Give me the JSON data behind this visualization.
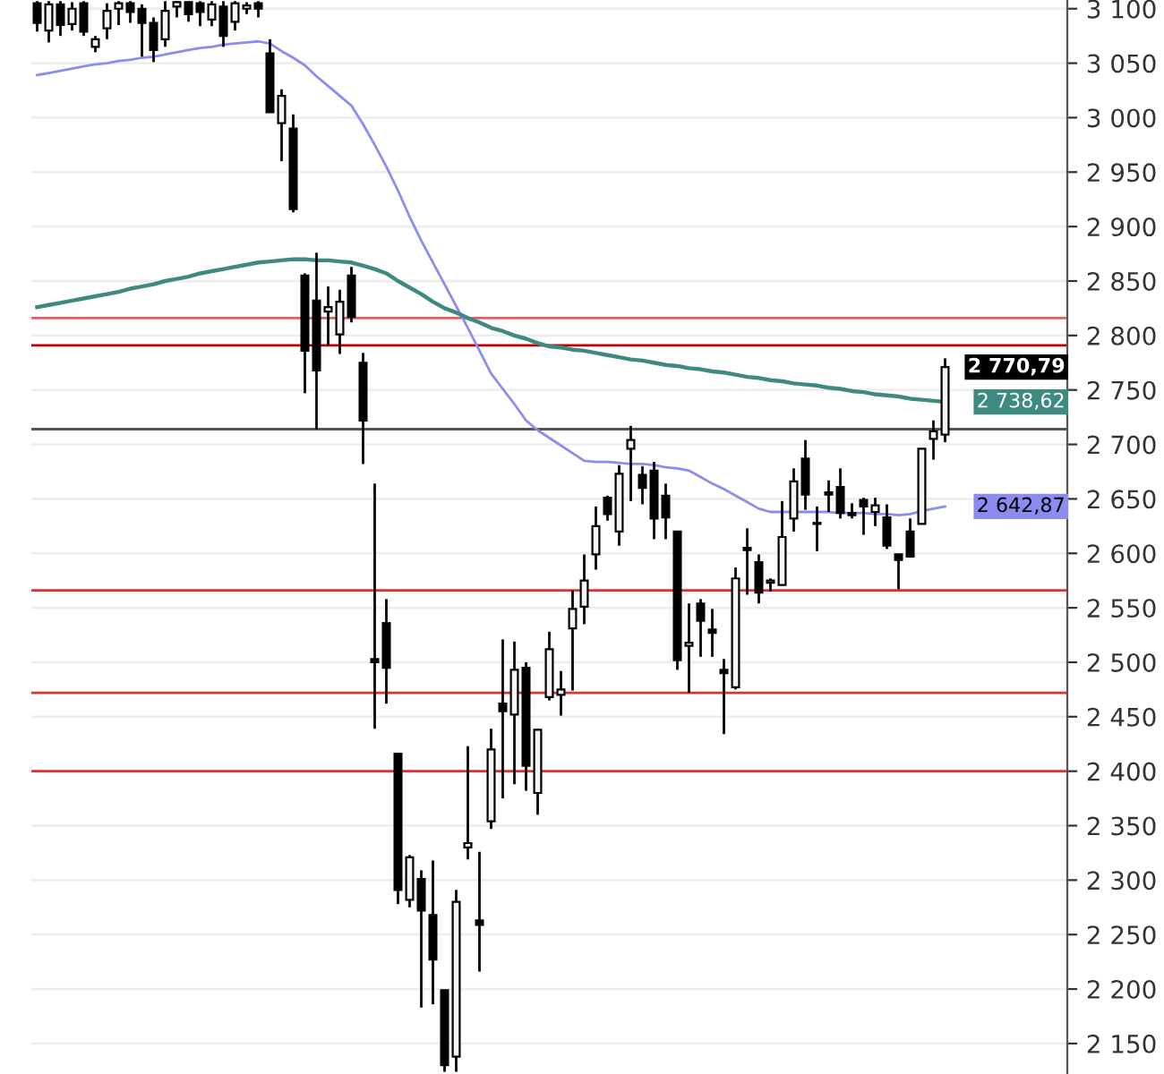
{
  "chart_data": {
    "type": "candlestick",
    "categories": [
      null,
      null,
      null,
      null,
      null,
      null,
      null,
      null,
      null,
      null,
      null,
      null,
      null,
      null,
      null,
      null,
      null,
      null,
      null,
      null,
      null,
      null,
      null,
      null,
      null,
      null,
      null,
      null,
      null,
      null,
      null,
      null,
      null,
      null,
      null,
      null,
      null,
      null,
      null,
      null,
      null,
      null,
      null,
      null,
      null,
      null,
      null,
      null,
      null,
      null,
      null,
      null,
      null,
      null,
      null,
      null,
      null,
      null,
      null,
      null,
      null,
      null,
      null,
      null,
      null,
      null,
      null,
      null,
      null,
      null,
      null,
      null,
      null,
      null,
      null,
      null,
      null,
      null,
      null
    ],
    "ohlc": [
      [
        3105,
        3107,
        3079,
        3087
      ],
      [
        3080,
        3107,
        3069,
        3104
      ],
      [
        3104,
        3107,
        3075,
        3085
      ],
      [
        3086,
        3106,
        3080,
        3100
      ],
      [
        3105,
        3107,
        3075,
        3079
      ],
      [
        3065,
        3075,
        3060,
        3072
      ],
      [
        3082,
        3105,
        3072,
        3098
      ],
      [
        3100,
        3107,
        3085,
        3105
      ],
      [
        3105,
        3107,
        3087,
        3097
      ],
      [
        3100,
        3104,
        3056,
        3087
      ],
      [
        3087,
        3092,
        3051,
        3062
      ],
      [
        3072,
        3107,
        3065,
        3098
      ],
      [
        3102,
        3107,
        3092,
        3106
      ],
      [
        3106,
        3107,
        3088,
        3095
      ],
      [
        3105,
        3107,
        3084,
        3097
      ],
      [
        3090,
        3107,
        3084,
        3104
      ],
      [
        3102,
        3107,
        3065,
        3075
      ],
      [
        3088,
        3107,
        3080,
        3105
      ],
      [
        3100,
        3106,
        3095,
        3103
      ],
      [
        3105,
        3107,
        3092,
        3100
      ],
      [
        3059,
        3072,
        3005,
        3005
      ],
      [
        2995,
        3026,
        2960,
        3020
      ],
      [
        2990,
        3003,
        2913,
        2916
      ],
      [
        2855,
        2857,
        2747,
        2786
      ],
      [
        2832,
        2876,
        2714,
        2768
      ],
      [
        2822,
        2845,
        2791,
        2826
      ],
      [
        2801,
        2842,
        2783,
        2831
      ],
      [
        2855,
        2863,
        2812,
        2817
      ],
      [
        2775,
        2784,
        2682,
        2722
      ],
      [
        2503,
        2664,
        2439,
        2500
      ],
      [
        2536,
        2558,
        2462,
        2495
      ],
      [
        2416,
        2416,
        2278,
        2291
      ],
      [
        2282,
        2323,
        2275,
        2321
      ],
      [
        2301,
        2309,
        2183,
        2272
      ],
      [
        2268,
        2318,
        2186,
        2227
      ],
      [
        2199,
        2199,
        2124,
        2130
      ],
      [
        2138,
        2291,
        2124,
        2280
      ],
      [
        2330,
        2423,
        2319,
        2334
      ],
      [
        2263,
        2326,
        2216,
        2259
      ],
      [
        2354,
        2439,
        2347,
        2420
      ],
      [
        2462,
        2521,
        2375,
        2455
      ],
      [
        2452,
        2519,
        2388,
        2493
      ],
      [
        2495,
        2500,
        2382,
        2405
      ],
      [
        2380,
        2439,
        2360,
        2438
      ],
      [
        2468,
        2528,
        2465,
        2512
      ],
      [
        2470,
        2492,
        2451,
        2475
      ],
      [
        2531,
        2566,
        2474,
        2549
      ],
      [
        2551,
        2599,
        2535,
        2575
      ],
      [
        2599,
        2643,
        2585,
        2625
      ],
      [
        2651,
        2653,
        2630,
        2636
      ],
      [
        2620,
        2681,
        2607,
        2673
      ],
      [
        2696,
        2717,
        2648,
        2704
      ],
      [
        2672,
        2680,
        2645,
        2660
      ],
      [
        2676,
        2684,
        2613,
        2632
      ],
      [
        2653,
        2664,
        2613,
        2633
      ],
      [
        2620,
        2620,
        2493,
        2502
      ],
      [
        2515,
        2554,
        2472,
        2518
      ],
      [
        2554,
        2558,
        2505,
        2538
      ],
      [
        2530,
        2549,
        2505,
        2527
      ],
      [
        2493,
        2503,
        2434,
        2490
      ],
      [
        2477,
        2587,
        2475,
        2577
      ],
      [
        2605,
        2623,
        2562,
        2603
      ],
      [
        2592,
        2599,
        2554,
        2564
      ],
      [
        2573,
        2577,
        2565,
        2575
      ],
      [
        2571,
        2648,
        2571,
        2615
      ],
      [
        2632,
        2678,
        2620,
        2666
      ],
      [
        2687,
        2704,
        2640,
        2654
      ],
      [
        2628,
        2643,
        2602,
        2627
      ],
      [
        2656,
        2667,
        2638,
        2654
      ],
      [
        2661,
        2678,
        2632,
        2637
      ],
      [
        2637,
        2646,
        2632,
        2635
      ],
      [
        2649,
        2651,
        2617,
        2643
      ],
      [
        2638,
        2651,
        2625,
        2644
      ],
      [
        2633,
        2645,
        2604,
        2607
      ],
      [
        2599,
        2599,
        2567,
        2594
      ],
      [
        2620,
        2632,
        2597,
        2597
      ],
      [
        2627,
        2696,
        2627,
        2696
      ],
      [
        2705,
        2722,
        2686,
        2712
      ],
      [
        2709,
        2779,
        2702,
        2771
      ]
    ],
    "series": [
      {
        "type": "line",
        "color": "#8c8cf0",
        "values": [
          3039,
          3041,
          3043,
          3045,
          3047,
          3049,
          3050,
          3052,
          3053,
          3055,
          3056,
          3058,
          3060,
          3062,
          3064,
          3065,
          3067,
          3068,
          3069,
          3070,
          3068,
          3061,
          3055,
          3048,
          3038,
          3029,
          3020,
          3011,
          2994,
          2975,
          2955,
          2933,
          2909,
          2887,
          2867,
          2847,
          2827,
          2807,
          2786,
          2765,
          2751,
          2737,
          2722,
          2713,
          2706,
          2699,
          2692,
          2685,
          2684,
          2684,
          2683,
          2682,
          2682,
          2681,
          2679,
          2678,
          2676,
          2670,
          2664,
          2659,
          2653,
          2647,
          2641,
          2638,
          2638,
          2638,
          2638,
          2638,
          2638,
          2637,
          2637,
          2637,
          2636,
          2636,
          2635,
          2636,
          2639,
          2641,
          2643
        ]
      },
      {
        "type": "line",
        "color": "#3f8a80",
        "values": [
          2826,
          2828,
          2830,
          2832,
          2834,
          2836,
          2838,
          2840,
          2843,
          2845,
          2847,
          2850,
          2852,
          2854,
          2857,
          2859,
          2861,
          2863,
          2865,
          2867,
          2868,
          2869,
          2870,
          2870,
          2869,
          2869,
          2868,
          2867,
          2864,
          2861,
          2857,
          2850,
          2844,
          2838,
          2831,
          2825,
          2821,
          2816,
          2812,
          2807,
          2804,
          2800,
          2797,
          2793,
          2790,
          2789,
          2787,
          2786,
          2784,
          2782,
          2780,
          2778,
          2777,
          2775,
          2773,
          2772,
          2770,
          2769,
          2767,
          2766,
          2764,
          2762,
          2761,
          2759,
          2758,
          2756,
          2755,
          2754,
          2752,
          2751,
          2749,
          2748,
          2746,
          2745,
          2744,
          2742,
          2741,
          2740,
          2739
        ]
      }
    ],
    "ref_lines": [
      {
        "axis": "y",
        "value": 2816,
        "color": "#e06060"
      },
      {
        "axis": "y",
        "value": 2791,
        "color": "#c00000"
      },
      {
        "axis": "y",
        "value": 2714,
        "color": "#555555"
      },
      {
        "axis": "y",
        "value": 2566,
        "color": "#e03030"
      },
      {
        "axis": "y",
        "value": 2472,
        "color": "#e03030"
      },
      {
        "axis": "y",
        "value": 2400,
        "color": "#e03030"
      }
    ],
    "annotations": [
      "2 770,79",
      "2 738,62",
      "2 642,87"
    ],
    "ylim": [
      2122,
      3108
    ],
    "yticks": [
      {
        "value": 2150,
        "label": "2 150"
      },
      {
        "value": 2200,
        "label": "2 200"
      },
      {
        "value": 2250,
        "label": "2 250"
      },
      {
        "value": 2300,
        "label": "2 300"
      },
      {
        "value": 2350,
        "label": "2 350"
      },
      {
        "value": 2400,
        "label": "2 400"
      },
      {
        "value": 2450,
        "label": "2 450"
      },
      {
        "value": 2500,
        "label": "2 500"
      },
      {
        "value": 2550,
        "label": "2 550"
      },
      {
        "value": 2600,
        "label": "2 600"
      },
      {
        "value": 2650,
        "label": "2 650"
      },
      {
        "value": 2700,
        "label": "2 700"
      },
      {
        "value": 2750,
        "label": "2 750"
      },
      {
        "value": 2800,
        "label": "2 800"
      },
      {
        "value": 2850,
        "label": "2 850"
      },
      {
        "value": 2900,
        "label": "2 900"
      },
      {
        "value": 2950,
        "label": "2 950"
      },
      {
        "value": 3000,
        "label": "3 000"
      },
      {
        "value": 3050,
        "label": "3 050"
      },
      {
        "value": 3100,
        "label": "3 100"
      }
    ],
    "tick_labels": "y",
    "grid": "y"
  }
}
